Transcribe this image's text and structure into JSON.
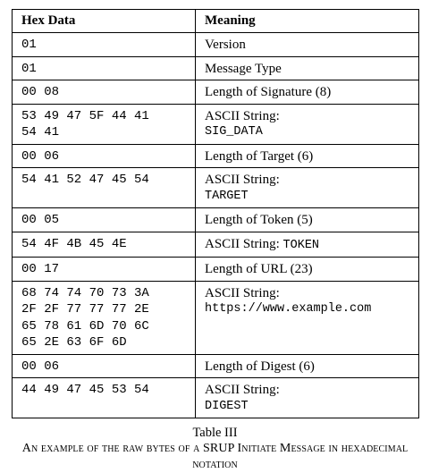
{
  "table": {
    "headers": [
      "Hex Data",
      "Meaning"
    ],
    "rows": [
      {
        "hex": [
          "01"
        ],
        "meaning": "Version"
      },
      {
        "hex": [
          "01"
        ],
        "meaning": "Message Type"
      },
      {
        "hex": [
          "00 08"
        ],
        "meaning": "Length of Signature (8)"
      },
      {
        "hex": [
          "53 49 47 5F 44 41",
          "54 41"
        ],
        "meaning": "ASCII String:",
        "ascii": "SIG_DATA"
      },
      {
        "hex": [
          "00 06"
        ],
        "meaning": "Length of Target (6)"
      },
      {
        "hex": [
          "54 41 52 47 45 54"
        ],
        "meaning": "ASCII String:",
        "ascii": "TARGET"
      },
      {
        "hex": [
          "00 05"
        ],
        "meaning": "Length of Token (5)"
      },
      {
        "hex": [
          "54 4F 4B 45 4E"
        ],
        "meaning": "ASCII String:",
        "ascii_inline": "TOKEN"
      },
      {
        "hex": [
          "00 17"
        ],
        "meaning": "Length of URL (23)"
      },
      {
        "hex": [
          "68 74 74 70 73 3A",
          "2F 2F 77 77 77 2E",
          "65 78 61 6D 70 6C",
          "65 2E 63 6F 6D"
        ],
        "meaning": "ASCII String:",
        "ascii": "https://www.example.com"
      },
      {
        "hex": [
          "00 06"
        ],
        "meaning": "Length of Digest (6)"
      },
      {
        "hex": [
          "44 49 47 45 53 54"
        ],
        "meaning": "ASCII String:",
        "ascii": "DIGEST"
      }
    ]
  },
  "caption": {
    "label": "Table III",
    "text": "An example of the raw bytes of a SRUP Initiate Message in hexadecimal notation"
  }
}
